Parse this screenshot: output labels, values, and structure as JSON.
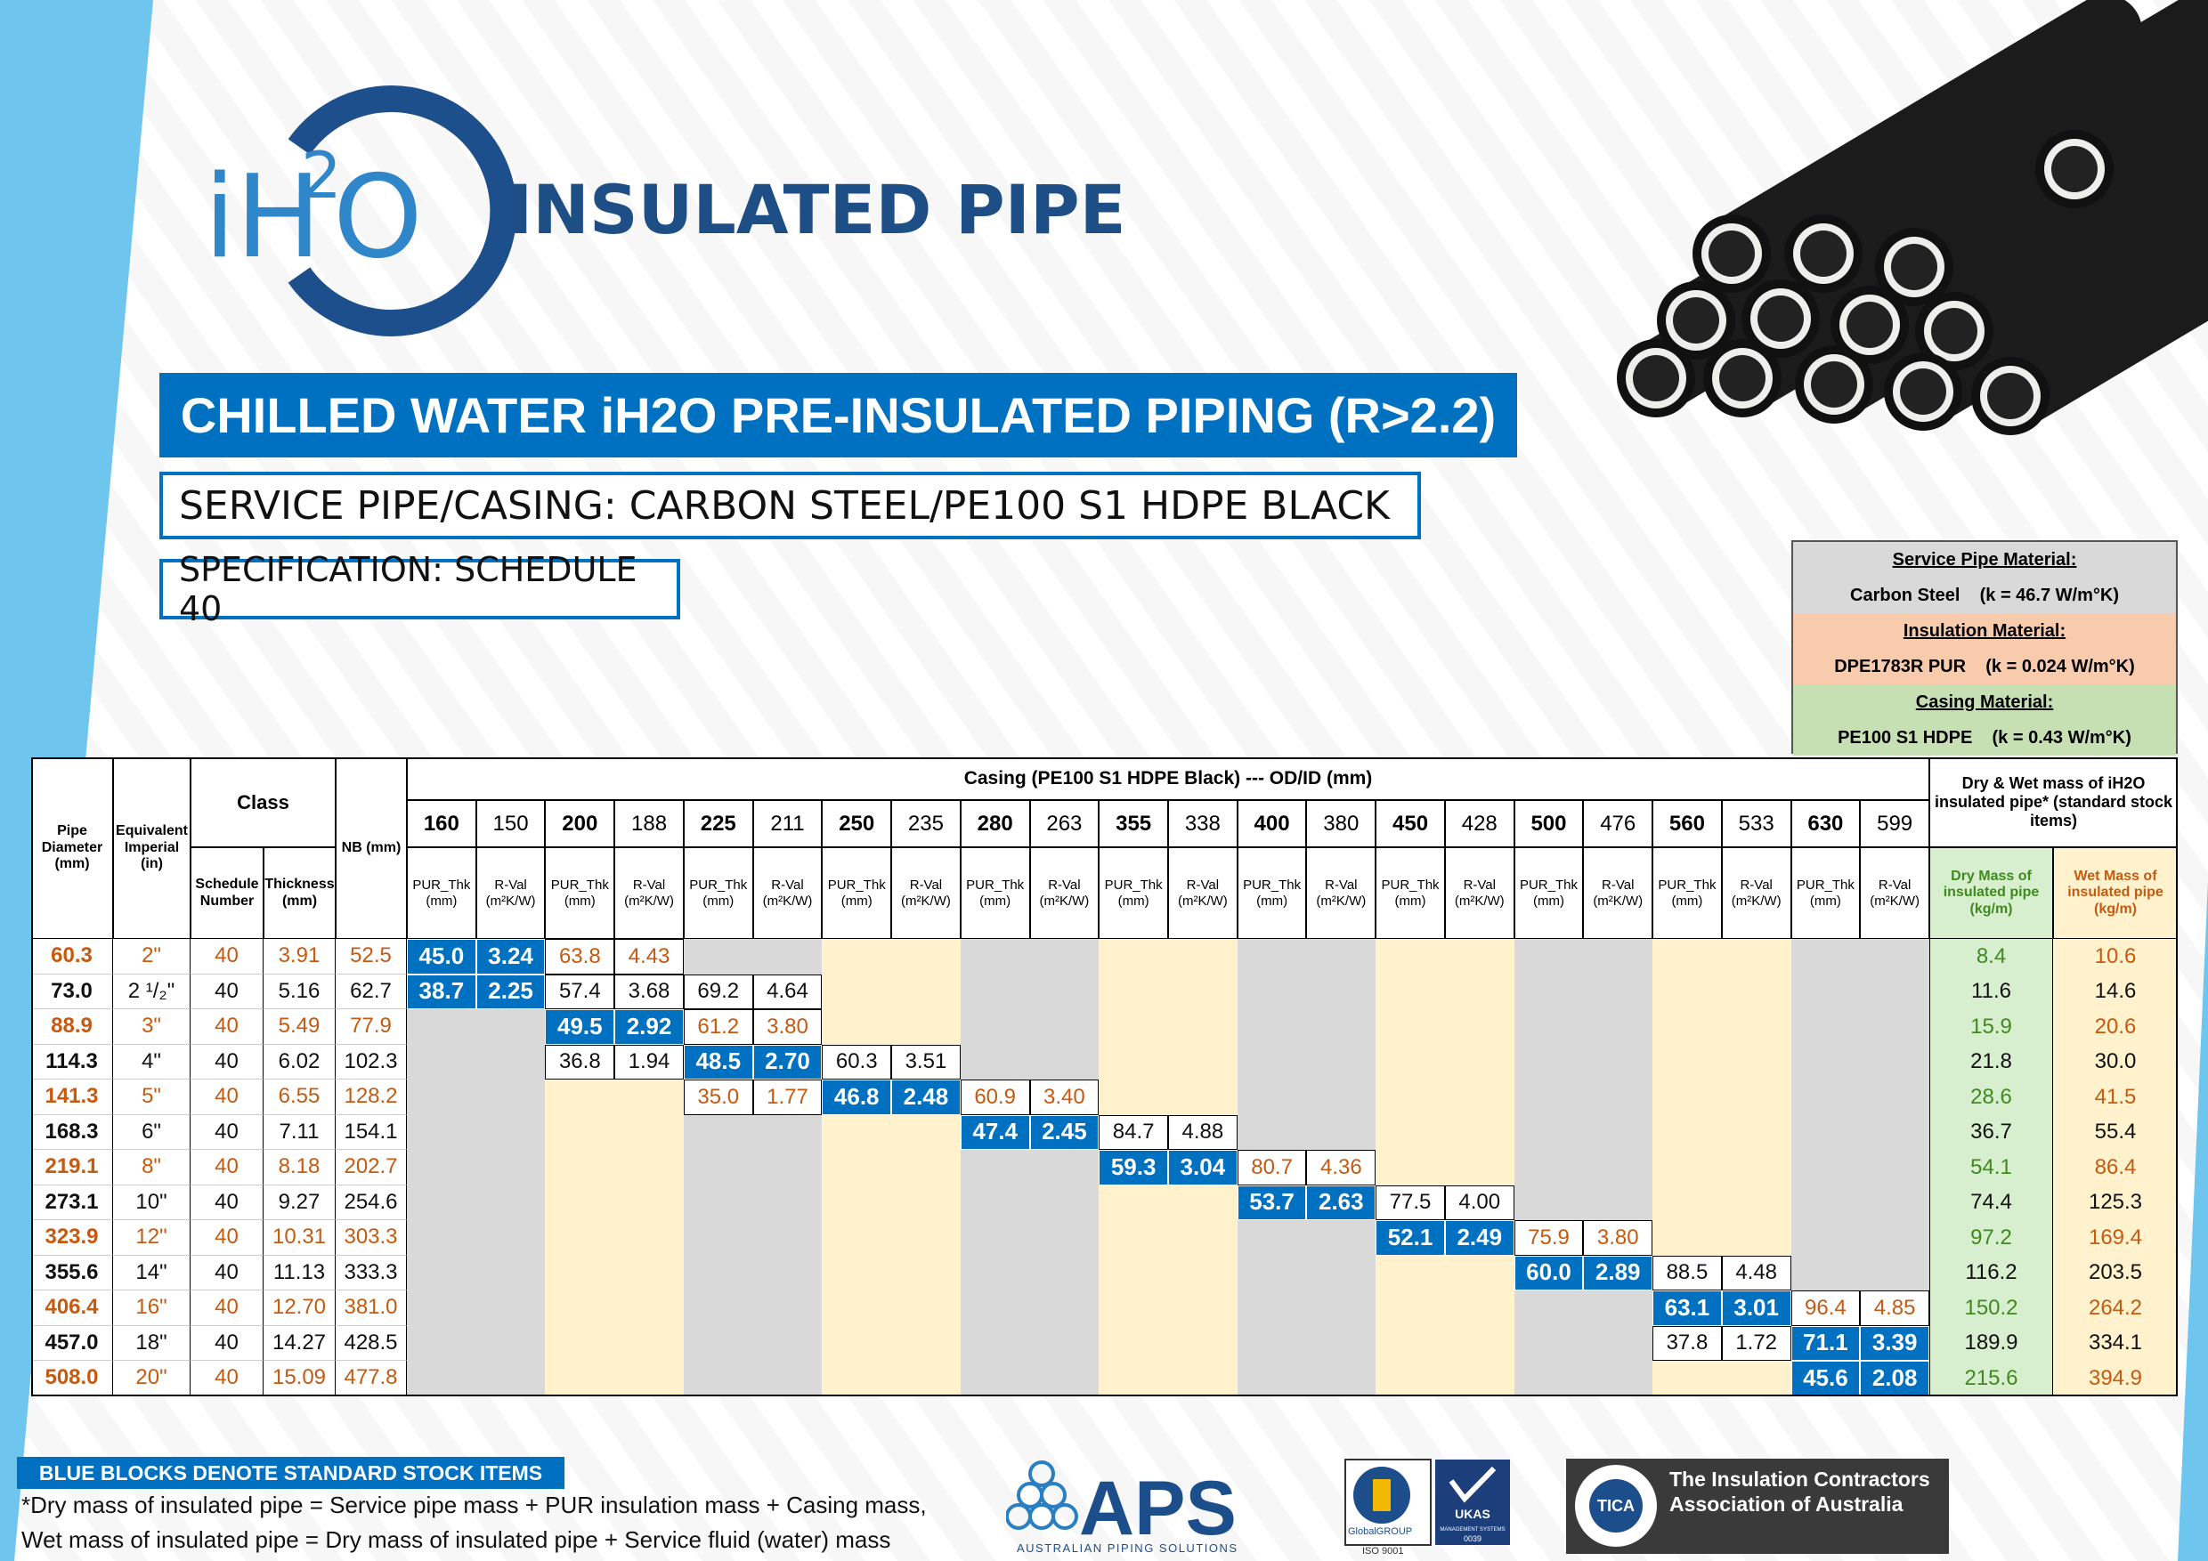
{
  "header": {
    "logo": [
      "iH",
      "2",
      "O"
    ],
    "brand": "INSULATED PIPE",
    "title": "CHILLED WATER iH2O PRE-INSULATED PIPING (R>2.2)",
    "service": "SERVICE PIPE/CASING: CARBON STEEL/PE100 S1 HDPE BLACK",
    "specification": "SPECIFICATION: SCHEDULE 40"
  },
  "materials": [
    {
      "heading": "Service Pipe Material:",
      "value": "Carbon Steel    (k = 46.7 W/m°K)"
    },
    {
      "heading": "Insulation Material:",
      "value": "DPE1783R PUR    (k = 0.024 W/m°K)"
    },
    {
      "heading": "Casing Material:",
      "value": "PE100 S1 HDPE    (k = 0.43 W/m°K)"
    }
  ],
  "table": {
    "headers": {
      "diameter": "Pipe Diameter (mm)",
      "imperial": "Equivalent Imperial (in)",
      "class": "Class",
      "schedule": "Schedule Number",
      "thickness": "Thickness (mm)",
      "nb": "NB (mm)",
      "casing": "Casing (PE100 S1 HDPE Black) --- OD/ID (mm)",
      "pur": "PUR_Thk (mm)",
      "rval": "R-Val (m²K/W)",
      "mass": "Dry & Wet mass of iH2O insulated pipe* (standard stock items)",
      "dry": "Dry Mass of insulated pipe (kg/m)",
      "wet": "Wet Mass of insulated pipe (kg/m)"
    },
    "casings": [
      {
        "od": "160",
        "id": "150"
      },
      {
        "od": "200",
        "id": "188"
      },
      {
        "od": "225",
        "id": "211"
      },
      {
        "od": "250",
        "id": "235"
      },
      {
        "od": "280",
        "id": "263"
      },
      {
        "od": "355",
        "id": "338"
      },
      {
        "od": "400",
        "id": "380"
      },
      {
        "od": "450",
        "id": "428"
      },
      {
        "od": "500",
        "id": "476"
      },
      {
        "od": "560",
        "id": "533"
      },
      {
        "od": "630",
        "id": "599"
      }
    ],
    "rows": [
      {
        "diameter": "60.3",
        "imperial": "2\"",
        "schedule": "40",
        "thickness": "3.91",
        "nb": "52.5",
        "casing": [
          {
            "pur": "45.0",
            "rval": "3.24",
            "stock": true
          },
          {
            "pur": "63.8",
            "rval": "4.43"
          },
          null,
          null,
          null,
          null,
          null,
          null,
          null,
          null,
          null
        ],
        "dry": "8.4",
        "wet": "10.6"
      },
      {
        "diameter": "73.0",
        "imperial": "2 ¹/₂\"",
        "schedule": "40",
        "thickness": "5.16",
        "nb": "62.7",
        "casing": [
          {
            "pur": "38.7",
            "rval": "2.25",
            "stock": true
          },
          {
            "pur": "57.4",
            "rval": "3.68"
          },
          {
            "pur": "69.2",
            "rval": "4.64"
          },
          null,
          null,
          null,
          null,
          null,
          null,
          null,
          null
        ],
        "dry": "11.6",
        "wet": "14.6"
      },
      {
        "diameter": "88.9",
        "imperial": "3\"",
        "schedule": "40",
        "thickness": "5.49",
        "nb": "77.9",
        "casing": [
          null,
          {
            "pur": "49.5",
            "rval": "2.92",
            "stock": true
          },
          {
            "pur": "61.2",
            "rval": "3.80"
          },
          null,
          null,
          null,
          null,
          null,
          null,
          null,
          null
        ],
        "dry": "15.9",
        "wet": "20.6"
      },
      {
        "diameter": "114.3",
        "imperial": "4\"",
        "schedule": "40",
        "thickness": "6.02",
        "nb": "102.3",
        "casing": [
          null,
          {
            "pur": "36.8",
            "rval": "1.94"
          },
          {
            "pur": "48.5",
            "rval": "2.70",
            "stock": true
          },
          {
            "pur": "60.3",
            "rval": "3.51"
          },
          null,
          null,
          null,
          null,
          null,
          null,
          null
        ],
        "dry": "21.8",
        "wet": "30.0"
      },
      {
        "diameter": "141.3",
        "imperial": "5\"",
        "schedule": "40",
        "thickness": "6.55",
        "nb": "128.2",
        "casing": [
          null,
          null,
          {
            "pur": "35.0",
            "rval": "1.77"
          },
          {
            "pur": "46.8",
            "rval": "2.48",
            "stock": true
          },
          {
            "pur": "60.9",
            "rval": "3.40"
          },
          null,
          null,
          null,
          null,
          null,
          null
        ],
        "dry": "28.6",
        "wet": "41.5"
      },
      {
        "diameter": "168.3",
        "imperial": "6\"",
        "schedule": "40",
        "thickness": "7.11",
        "nb": "154.1",
        "casing": [
          null,
          null,
          null,
          null,
          {
            "pur": "47.4",
            "rval": "2.45",
            "stock": true
          },
          {
            "pur": "84.7",
            "rval": "4.88"
          },
          null,
          null,
          null,
          null,
          null
        ],
        "dry": "36.7",
        "wet": "55.4"
      },
      {
        "diameter": "219.1",
        "imperial": "8\"",
        "schedule": "40",
        "thickness": "8.18",
        "nb": "202.7",
        "casing": [
          null,
          null,
          null,
          null,
          null,
          {
            "pur": "59.3",
            "rval": "3.04",
            "stock": true
          },
          {
            "pur": "80.7",
            "rval": "4.36"
          },
          null,
          null,
          null,
          null
        ],
        "dry": "54.1",
        "wet": "86.4"
      },
      {
        "diameter": "273.1",
        "imperial": "10\"",
        "schedule": "40",
        "thickness": "9.27",
        "nb": "254.6",
        "casing": [
          null,
          null,
          null,
          null,
          null,
          null,
          {
            "pur": "53.7",
            "rval": "2.63",
            "stock": true
          },
          {
            "pur": "77.5",
            "rval": "4.00"
          },
          null,
          null,
          null
        ],
        "dry": "74.4",
        "wet": "125.3"
      },
      {
        "diameter": "323.9",
        "imperial": "12\"",
        "schedule": "40",
        "thickness": "10.31",
        "nb": "303.3",
        "casing": [
          null,
          null,
          null,
          null,
          null,
          null,
          null,
          {
            "pur": "52.1",
            "rval": "2.49",
            "stock": true
          },
          {
            "pur": "75.9",
            "rval": "3.80"
          },
          null,
          null
        ],
        "dry": "97.2",
        "wet": "169.4"
      },
      {
        "diameter": "355.6",
        "imperial": "14\"",
        "schedule": "40",
        "thickness": "11.13",
        "nb": "333.3",
        "casing": [
          null,
          null,
          null,
          null,
          null,
          null,
          null,
          null,
          {
            "pur": "60.0",
            "rval": "2.89",
            "stock": true
          },
          {
            "pur": "88.5",
            "rval": "4.48"
          },
          null
        ],
        "dry": "116.2",
        "wet": "203.5"
      },
      {
        "diameter": "406.4",
        "imperial": "16\"",
        "schedule": "40",
        "thickness": "12.70",
        "nb": "381.0",
        "casing": [
          null,
          null,
          null,
          null,
          null,
          null,
          null,
          null,
          null,
          {
            "pur": "63.1",
            "rval": "3.01",
            "stock": true
          },
          {
            "pur": "96.4",
            "rval": "4.85"
          }
        ],
        "dry": "150.2",
        "wet": "264.2"
      },
      {
        "diameter": "457.0",
        "imperial": "18\"",
        "schedule": "40",
        "thickness": "14.27",
        "nb": "428.5",
        "casing": [
          null,
          null,
          null,
          null,
          null,
          null,
          null,
          null,
          null,
          {
            "pur": "37.8",
            "rval": "1.72"
          },
          {
            "pur": "71.1",
            "rval": "3.39",
            "stock": true
          }
        ],
        "dry": "189.9",
        "wet": "334.1"
      },
      {
        "diameter": "508.0",
        "imperial": "20\"",
        "schedule": "40",
        "thickness": "15.09",
        "nb": "477.8",
        "casing": [
          null,
          null,
          null,
          null,
          null,
          null,
          null,
          null,
          null,
          null,
          {
            "pur": "45.6",
            "rval": "2.08",
            "stock": true
          }
        ],
        "dry": "215.6",
        "wet": "394.9"
      }
    ]
  },
  "footer": {
    "legend": "BLUE BLOCKS DENOTE STANDARD STOCK ITEMS",
    "notes": [
      "*Dry mass of insulated pipe = Service pipe mass + PUR insulation mass + Casing mass,",
      "Wet mass of insulated pipe = Dry mass of insulated pipe + Service fluid (water) mass"
    ],
    "logos": {
      "aps": "APS",
      "aps_sub": "AUSTRALIAN PIPING SOLUTIONS",
      "global": "GlobalGROUP",
      "iso": "ISO 9001",
      "ukas": "UKAS",
      "ukas_sub": "MANAGEMENT SYSTEMS",
      "ukas_num": "0039",
      "tica": "TICA",
      "tica_name": "The Insulation Contractors Association of Australia"
    }
  }
}
